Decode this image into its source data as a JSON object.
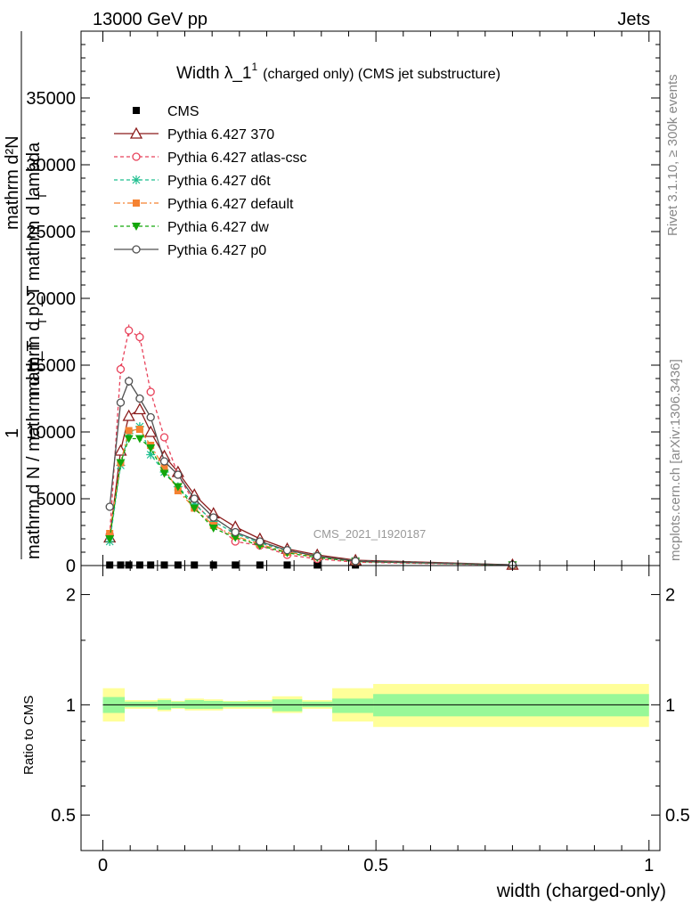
{
  "header": {
    "energy_label": "13000 GeV pp",
    "category_label": "Jets",
    "rivet_label": "Rivet 3.1.10, ≥ 300k events",
    "mcplots_label": "mcplots.cern.ch [arXiv:1306.3436]"
  },
  "chart_data": [
    {
      "type": "line",
      "panel": "main",
      "title_main": "Width λ_1",
      "title_superscript": "1",
      "title_detail": "(charged only) (CMS jet substructure)",
      "watermark": "CMS_2021_I1920187",
      "ylabel": {
        "frac_prefix": "1",
        "frac_denominator": "mathrm d N / mathrm d p_T",
        "frac_denominator_sub": "T",
        "derivative_numerator": "mathrm d²N",
        "derivative_denominator": "mathrm d p_T mathrm d lambda",
        "derivative_denominator_sub": "T"
      },
      "xlim": [
        -0.04,
        1.02
      ],
      "ylim": [
        0,
        40000
      ],
      "yticks": [
        0,
        5000,
        10000,
        15000,
        20000,
        25000,
        30000,
        35000
      ],
      "ytick_labels": [
        "0",
        "5000",
        "10000",
        "15000",
        "20000",
        "25000",
        "30000",
        "35000"
      ],
      "x": [
        0.0125,
        0.0325,
        0.0475,
        0.0675,
        0.0875,
        0.1125,
        0.1375,
        0.1675,
        0.2025,
        0.2425,
        0.2875,
        0.3375,
        0.3925,
        0.4625,
        0.75
      ],
      "series": [
        {
          "name": "CMS",
          "color": "#000000",
          "marker": "square",
          "dash": "none",
          "values": [
            40,
            40,
            40,
            40,
            40,
            40,
            40,
            40,
            40,
            40,
            40,
            40,
            40,
            40,
            40
          ]
        },
        {
          "name": "Pythia 6.427 370",
          "color": "#8b1a1a",
          "marker": "triangle-open",
          "dash": "solid",
          "values": [
            2100,
            8600,
            11200,
            11700,
            10000,
            8200,
            7000,
            5300,
            3900,
            2900,
            2000,
            1250,
            800,
            400,
            60
          ]
        },
        {
          "name": "Pythia 6.427 atlas-csc",
          "color": "#e8425a",
          "marker": "circle-open",
          "dash": "4,3",
          "values": [
            2300,
            14700,
            17600,
            17100,
            13000,
            9600,
            6800,
            4700,
            3200,
            1800,
            1500,
            800,
            500,
            250,
            40
          ]
        },
        {
          "name": "Pythia 6.427 d6t",
          "color": "#1fbf8f",
          "marker": "star",
          "dash": "4,3",
          "values": [
            1800,
            7500,
            9900,
            10400,
            8300,
            7000,
            5900,
            4600,
            3300,
            2400,
            1700,
            1100,
            700,
            350,
            50
          ]
        },
        {
          "name": "Pythia 6.427 default",
          "color": "#f58231",
          "marker": "square-filled",
          "dash": "7,3,2,3",
          "values": [
            2400,
            7700,
            10100,
            10200,
            9000,
            7300,
            5600,
            4300,
            3000,
            2200,
            1600,
            1000,
            650,
            320,
            45
          ]
        },
        {
          "name": "Pythia 6.427 dw",
          "color": "#13a60a",
          "marker": "triangle-down-filled",
          "dash": "4,3",
          "values": [
            2000,
            7700,
            9500,
            9500,
            8800,
            6900,
            5900,
            4300,
            2800,
            2100,
            1500,
            950,
            600,
            300,
            40
          ]
        },
        {
          "name": "Pythia 6.427 p0",
          "color": "#505050",
          "marker": "circle-open",
          "dash": "solid",
          "values": [
            4400,
            12200,
            13800,
            12500,
            11100,
            7800,
            6800,
            5000,
            3600,
            2500,
            1800,
            1150,
            700,
            330,
            50
          ]
        }
      ],
      "legend_position": "top-left"
    },
    {
      "type": "area",
      "panel": "ratio",
      "ylabel": "Ratio to CMS",
      "xlabel": "width (charged-only)",
      "xlim": [
        -0.04,
        1.02
      ],
      "xticks": [
        0,
        0.5,
        1
      ],
      "xtick_labels": [
        "0",
        "0.5",
        "1"
      ],
      "ylim_log": [
        0.4,
        2.4
      ],
      "yticks": [
        0.5,
        1,
        2
      ],
      "ytick_labels": [
        "0.5",
        "1",
        "2"
      ],
      "ratio_line": 1.0,
      "bins": [
        {
          "x0": 0.0,
          "x1": 0.04,
          "stat_lo": 0.95,
          "stat_hi": 1.05,
          "tot_lo": 0.9,
          "tot_hi": 1.11
        },
        {
          "x0": 0.04,
          "x1": 0.1,
          "stat_lo": 0.985,
          "stat_hi": 1.02,
          "tot_lo": 0.975,
          "tot_hi": 1.03
        },
        {
          "x0": 0.1,
          "x1": 0.125,
          "stat_lo": 0.97,
          "stat_hi": 1.03,
          "tot_lo": 0.96,
          "tot_hi": 1.04
        },
        {
          "x0": 0.125,
          "x1": 0.15,
          "stat_lo": 0.98,
          "stat_hi": 1.02,
          "tot_lo": 0.975,
          "tot_hi": 1.025
        },
        {
          "x0": 0.15,
          "x1": 0.185,
          "stat_lo": 0.975,
          "stat_hi": 1.03,
          "tot_lo": 0.965,
          "tot_hi": 1.04
        },
        {
          "x0": 0.185,
          "x1": 0.22,
          "stat_lo": 0.975,
          "stat_hi": 1.025,
          "tot_lo": 0.965,
          "tot_hi": 1.035
        },
        {
          "x0": 0.22,
          "x1": 0.265,
          "stat_lo": 0.985,
          "stat_hi": 1.02,
          "tot_lo": 0.975,
          "tot_hi": 1.025
        },
        {
          "x0": 0.265,
          "x1": 0.31,
          "stat_lo": 0.985,
          "stat_hi": 1.02,
          "tot_lo": 0.975,
          "tot_hi": 1.03
        },
        {
          "x0": 0.31,
          "x1": 0.365,
          "stat_lo": 0.96,
          "stat_hi": 1.035,
          "tot_lo": 0.95,
          "tot_hi": 1.055
        },
        {
          "x0": 0.365,
          "x1": 0.42,
          "stat_lo": 0.985,
          "stat_hi": 1.02,
          "tot_lo": 0.975,
          "tot_hi": 1.03
        },
        {
          "x0": 0.42,
          "x1": 0.495,
          "stat_lo": 0.95,
          "stat_hi": 1.04,
          "tot_lo": 0.9,
          "tot_hi": 1.11
        },
        {
          "x0": 0.495,
          "x1": 1.0,
          "stat_lo": 0.93,
          "stat_hi": 1.07,
          "tot_lo": 0.87,
          "tot_hi": 1.14
        }
      ],
      "band_colors": {
        "stat": "#98f898",
        "total": "#ffff99"
      }
    }
  ]
}
